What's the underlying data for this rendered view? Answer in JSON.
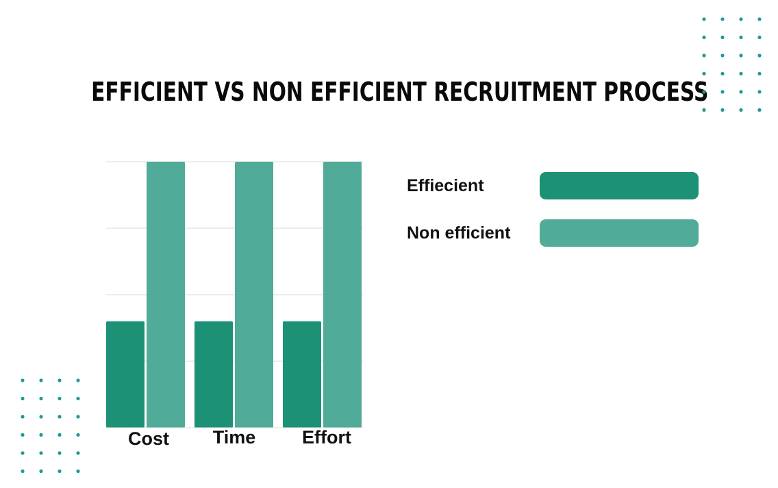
{
  "chart_data": {
    "type": "bar",
    "title": "EFFICIENT VS NON EFFICIENT RECRUITMENT PROCESS",
    "categories": [
      "Cost",
      "Time",
      "Effort"
    ],
    "series": [
      {
        "name": "Effiecient",
        "values": [
          40,
          40,
          40
        ],
        "color": "#1c9176"
      },
      {
        "name": "Non efficient",
        "values": [
          100,
          100,
          100
        ],
        "color": "#50ab98"
      }
    ],
    "ylim": [
      0,
      100
    ],
    "grid": true,
    "legend_position": "right"
  },
  "decor": {
    "dot_color": "#1f9a94"
  }
}
